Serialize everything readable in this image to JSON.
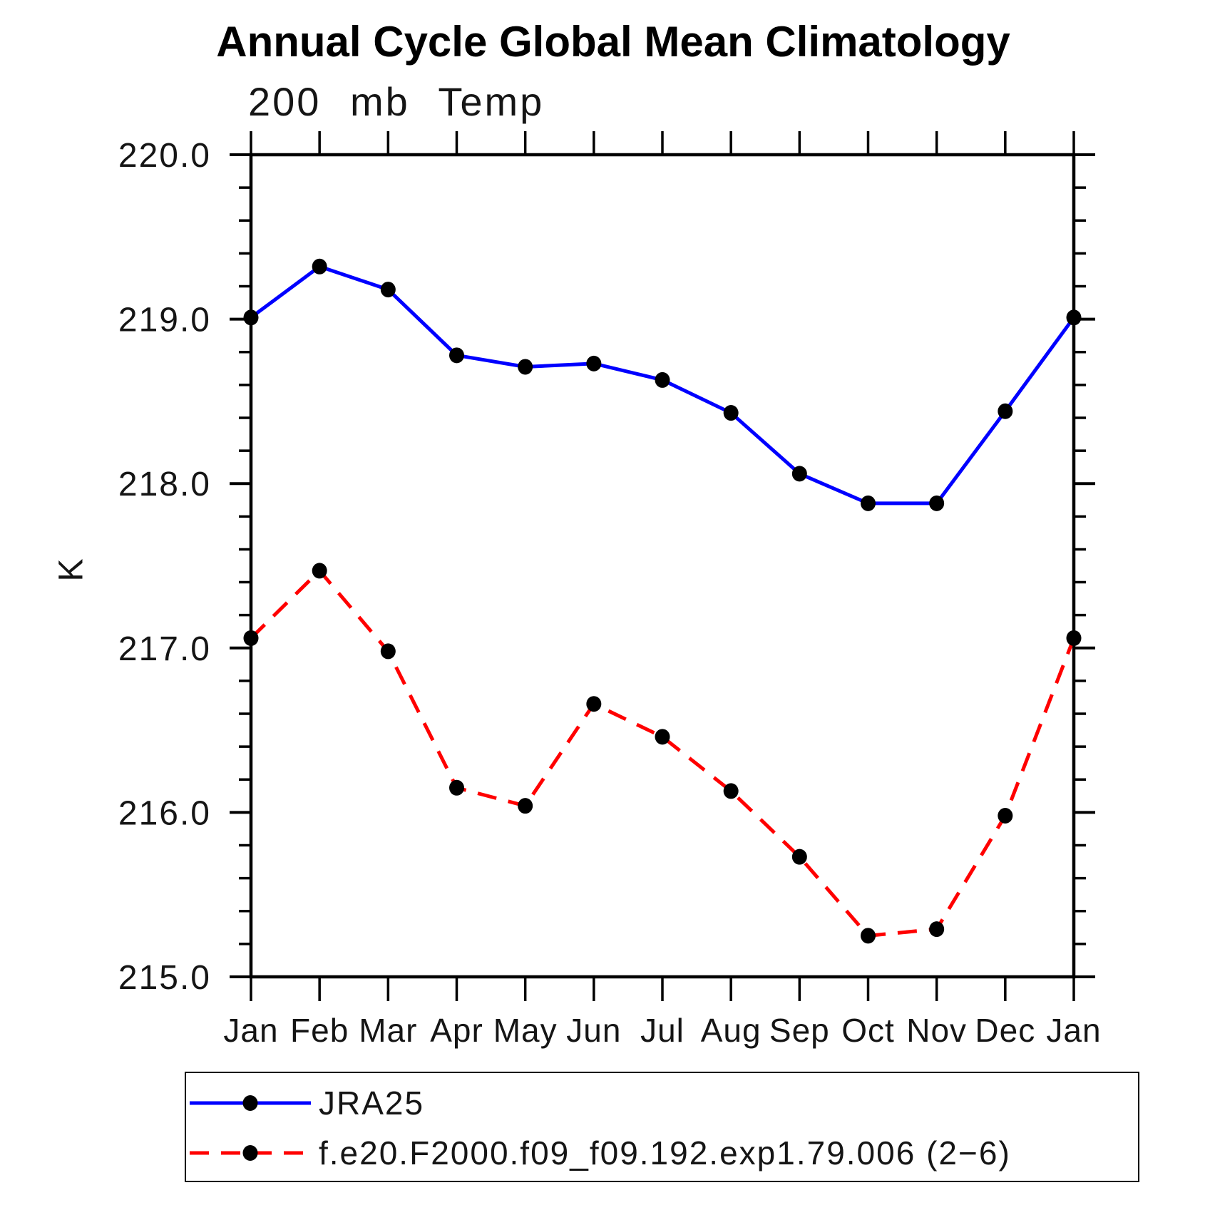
{
  "chart_data": {
    "type": "line",
    "title": "Annual Cycle Global Mean Climatology",
    "subtitle": "200 mb Temp",
    "ylabel": "K",
    "categories": [
      "Jan",
      "Feb",
      "Mar",
      "Apr",
      "May",
      "Jun",
      "Jul",
      "Aug",
      "Sep",
      "Oct",
      "Nov",
      "Dec",
      "Jan"
    ],
    "ylim": [
      215.0,
      220.0
    ],
    "y_minor_tick": 0.2,
    "y_ticks": [
      {
        "value": 220.0,
        "label": "220.0"
      },
      {
        "value": 219.0,
        "label": "219.0"
      },
      {
        "value": 218.0,
        "label": "218.0"
      },
      {
        "value": 217.0,
        "label": "217.0"
      },
      {
        "value": 216.0,
        "label": "216.0"
      },
      {
        "value": 215.0,
        "label": "215.0"
      }
    ],
    "grid": false,
    "legend_position": "bottom-left",
    "series": [
      {
        "name": "JRA25",
        "color": "#0000ff",
        "line_style": "solid",
        "marker": "filled-circle",
        "marker_color": "#000000",
        "values": [
          219.01,
          219.32,
          219.18,
          218.78,
          218.71,
          218.73,
          218.63,
          218.43,
          218.06,
          217.88,
          217.88,
          218.44,
          219.01
        ]
      },
      {
        "name": "f.e20.F2000.f09_f09.192.exp1.79.006 (2−6)",
        "color": "#ff0000",
        "line_style": "dashed",
        "marker": "filled-circle",
        "marker_color": "#000000",
        "values": [
          217.06,
          217.47,
          216.98,
          216.15,
          216.04,
          216.66,
          216.46,
          216.13,
          215.73,
          215.25,
          215.29,
          215.98,
          217.06
        ]
      }
    ]
  }
}
